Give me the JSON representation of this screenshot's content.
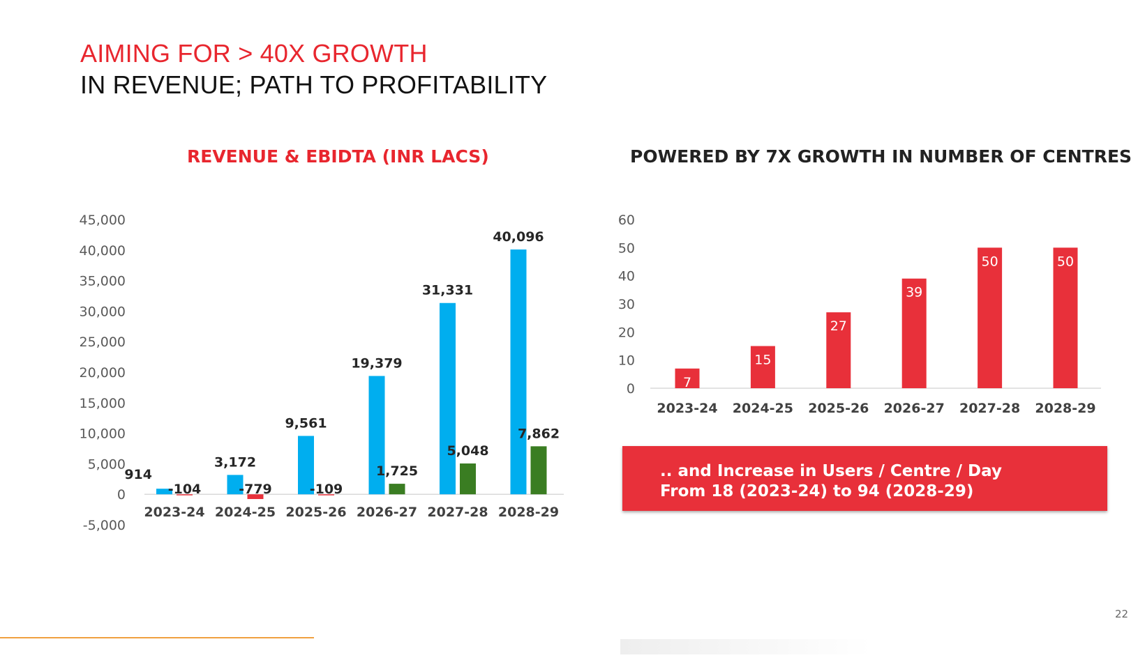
{
  "title": {
    "line1": "AIMING FOR > 40X GROWTH",
    "line2": "IN REVENUE; PATH TO PROFITABILITY"
  },
  "colors": {
    "accent_red": "#e8262e",
    "revenue_blue": "#00aeef",
    "ebitda_red": "#e8303a",
    "ebitda_green": "#3a7d22",
    "centres_red": "#e8303a"
  },
  "chart_data": [
    {
      "type": "bar",
      "title": "REVENUE & EBIDTA (INR LACS)",
      "categories": [
        "2023-24",
        "2024-25",
        "2025-26",
        "2026-27",
        "2027-28",
        "2028-29"
      ],
      "series": [
        {
          "name": "Revenue",
          "values": [
            914,
            3172,
            9561,
            19379,
            31331,
            40096
          ],
          "labels": [
            "914",
            "3,172",
            "9,561",
            "19,379",
            "31,331",
            "40,096"
          ]
        },
        {
          "name": "EBIDTA",
          "values": [
            -104,
            -779,
            -109,
            1725,
            5048,
            7862
          ],
          "labels": [
            "-104",
            "-779",
            "-109",
            "1,725",
            "5,048",
            "7,862"
          ]
        }
      ],
      "yticks": [
        45000,
        40000,
        35000,
        30000,
        25000,
        20000,
        15000,
        10000,
        5000,
        0,
        -5000
      ],
      "ytick_labels": [
        "45,000",
        "40,000",
        "35,000",
        "30,000",
        "25,000",
        "20,000",
        "15,000",
        "10,000",
        "5,000",
        "0",
        "-5,000"
      ],
      "ylim": [
        -5000,
        45000
      ],
      "xlabel": "",
      "ylabel": "",
      "grid": false
    },
    {
      "type": "bar",
      "title": "POWERED BY 7X GROWTH IN NUMBER OF CENTRES",
      "categories": [
        "2023-24",
        "2024-25",
        "2025-26",
        "2026-27",
        "2027-28",
        "2028-29"
      ],
      "values": [
        7,
        15,
        27,
        39,
        50,
        50
      ],
      "labels": [
        "7",
        "15",
        "27",
        "39",
        "50",
        "50"
      ],
      "yticks": [
        60,
        50,
        40,
        30,
        20,
        10,
        0
      ],
      "ytick_labels": [
        "60",
        "50",
        "40",
        "30",
        "20",
        "10",
        "0"
      ],
      "ylim": [
        0,
        60
      ],
      "xlabel": "",
      "ylabel": "",
      "grid": false
    }
  ],
  "note": {
    "line1": ".. and Increase in Users / Centre / Day",
    "line2": "From 18 (2023-24) to 94 (2028-29)"
  },
  "page_number": "22"
}
